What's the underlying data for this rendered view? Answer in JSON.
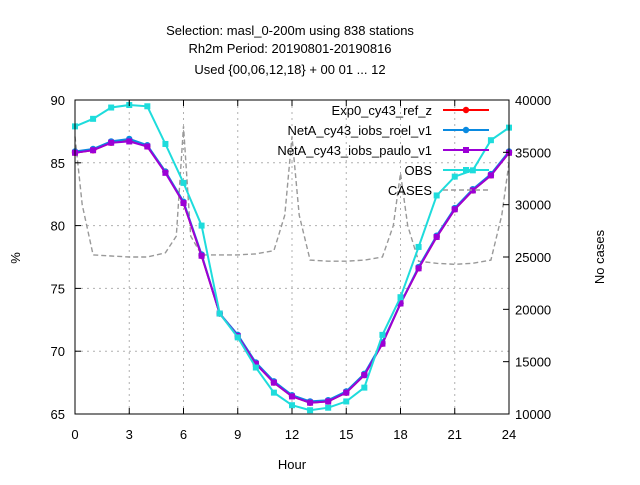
{
  "chart_data": {
    "type": "line",
    "title_lines": [
      "Selection: masl_0-200m using   838 stations",
      "Rh2m   Period: 20190801-20190816",
      "Used {00,06,12,18} + 00 01 ... 12"
    ],
    "xlabel": "Hour",
    "ylabel": "%",
    "y2label": "No cases",
    "xlim": [
      0,
      24
    ],
    "ylim": [
      65,
      90
    ],
    "y2lim": [
      10000,
      40000
    ],
    "xticks": [
      "0",
      "3",
      "6",
      "9",
      "12",
      "15",
      "18",
      "21",
      "24"
    ],
    "yticks": [
      "65",
      "70",
      "75",
      "80",
      "85",
      "90"
    ],
    "y2ticks": [
      "10000",
      "15000",
      "20000",
      "25000",
      "30000",
      "35000",
      "40000"
    ],
    "legend_position": "top-right",
    "grid": true,
    "x": [
      0,
      1,
      2,
      3,
      4,
      5,
      6,
      7,
      8,
      9,
      10,
      11,
      12,
      13,
      14,
      15,
      16,
      17,
      18,
      19,
      20,
      21,
      22,
      23,
      24
    ],
    "series": [
      {
        "name": "Exp0_cy43_ref_z",
        "color": "#ff0000",
        "marker": "circle",
        "values": [
          85.8,
          86.0,
          86.6,
          86.8,
          86.3,
          84.3,
          81.8,
          77.6,
          73.0,
          71.2,
          69.0,
          67.5,
          66.4,
          65.9,
          66.0,
          66.7,
          68.1,
          70.6,
          73.8,
          76.6,
          79.1,
          81.3,
          82.8,
          84.0,
          85.8
        ]
      },
      {
        "name": "NetA_cy43_iobs_roel_v1",
        "color": "#0a8ae0",
        "marker": "circle",
        "values": [
          85.9,
          86.1,
          86.7,
          86.9,
          86.4,
          84.3,
          81.9,
          77.7,
          73.0,
          71.3,
          69.1,
          67.6,
          66.5,
          66.0,
          66.1,
          66.8,
          68.2,
          70.7,
          73.8,
          76.7,
          79.2,
          81.4,
          82.9,
          84.1,
          85.9
        ]
      },
      {
        "name": "NetA_cy43_iobs_paulo_v1",
        "color": "#9c00d6",
        "marker": "square",
        "values": [
          85.8,
          86.0,
          86.6,
          86.7,
          86.3,
          84.2,
          81.8,
          77.6,
          73.0,
          71.2,
          69.0,
          67.5,
          66.4,
          65.9,
          66.0,
          66.7,
          68.1,
          70.6,
          73.8,
          76.6,
          79.1,
          81.3,
          82.8,
          84.0,
          85.8
        ]
      },
      {
        "name": "OBS",
        "color": "#1edcdc",
        "marker": "square",
        "values": [
          87.9,
          88.5,
          89.4,
          89.6,
          89.5,
          86.5,
          83.4,
          80.0,
          73.0,
          71.1,
          68.7,
          66.7,
          65.7,
          65.3,
          65.5,
          66.0,
          67.1,
          71.3,
          74.3,
          78.3,
          82.4,
          83.9,
          84.4,
          86.8,
          87.8
        ]
      },
      {
        "name": "CASES",
        "color": "#999999",
        "axis": "y2",
        "style": "dashed",
        "x": [
          0,
          0.4,
          1,
          2,
          3,
          4,
          5,
          5.6,
          6,
          6.4,
          7,
          8,
          9,
          10,
          11,
          11.6,
          12,
          12.4,
          13,
          14,
          15,
          16,
          17,
          17.6,
          18,
          18.4,
          19,
          20,
          21,
          22,
          23,
          23.6,
          24
        ],
        "values": [
          36500,
          30000,
          25200,
          25100,
          25000,
          25000,
          25400,
          27000,
          37500,
          27000,
          25200,
          25200,
          25200,
          25300,
          25600,
          29000,
          36500,
          29000,
          24700,
          24600,
          24600,
          24700,
          25000,
          28000,
          33000,
          28000,
          24600,
          24400,
          24300,
          24400,
          24700,
          29000,
          34000
        ]
      }
    ]
  }
}
